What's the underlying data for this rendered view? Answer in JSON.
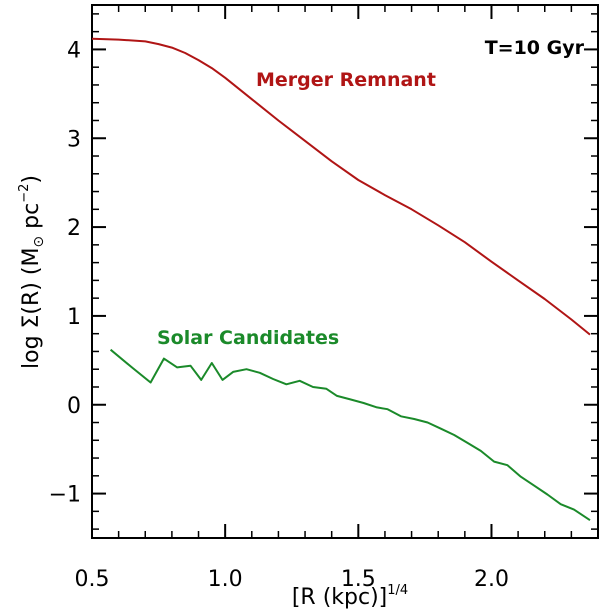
{
  "chart_data": {
    "type": "line",
    "annotation": "T=10 Gyr",
    "xlabel": "[R (kpc)]",
    "xlabel_superscript": "1/4",
    "ylabel": "log Σ(R)  (M",
    "ylabel_sun_symbol": "⊙",
    "ylabel_unit": " pc",
    "ylabel_superscript": "−2",
    "ylabel_close": ")",
    "xlim": [
      0.5,
      2.4
    ],
    "ylim": [
      -1.5,
      4.5
    ],
    "xticks": [
      0.5,
      1.0,
      1.5,
      2.0
    ],
    "xtick_labels": [
      "0.5",
      "1.0",
      "1.5",
      "2.0"
    ],
    "yticks": [
      -1,
      0,
      1,
      2,
      3,
      4
    ],
    "ytick_labels": [
      "−1",
      "0",
      "1",
      "2",
      "3",
      "4"
    ],
    "series": [
      {
        "name": "Merger Remnant",
        "color": "#b01515",
        "x": [
          0.5,
          0.6,
          0.7,
          0.75,
          0.8,
          0.85,
          0.9,
          0.95,
          1.0,
          1.1,
          1.2,
          1.3,
          1.4,
          1.5,
          1.6,
          1.7,
          1.8,
          1.9,
          2.0,
          2.1,
          2.2,
          2.3,
          2.37
        ],
        "y": [
          4.12,
          4.11,
          4.09,
          4.06,
          4.02,
          3.96,
          3.88,
          3.79,
          3.68,
          3.44,
          3.2,
          2.97,
          2.74,
          2.53,
          2.36,
          2.2,
          2.02,
          1.83,
          1.61,
          1.4,
          1.19,
          0.96,
          0.79
        ]
      },
      {
        "name": "Solar Candidates",
        "color": "#1b8a2a",
        "x": [
          0.57,
          0.65,
          0.72,
          0.77,
          0.82,
          0.87,
          0.91,
          0.95,
          0.99,
          1.03,
          1.08,
          1.13,
          1.18,
          1.23,
          1.28,
          1.33,
          1.38,
          1.42,
          1.47,
          1.52,
          1.57,
          1.61,
          1.66,
          1.71,
          1.76,
          1.81,
          1.86,
          1.91,
          1.96,
          2.01,
          2.06,
          2.11,
          2.16,
          2.21,
          2.26,
          2.31,
          2.37
        ],
        "y": [
          0.62,
          0.42,
          0.25,
          0.52,
          0.42,
          0.44,
          0.28,
          0.47,
          0.28,
          0.37,
          0.4,
          0.36,
          0.29,
          0.23,
          0.27,
          0.2,
          0.18,
          0.1,
          0.06,
          0.02,
          -0.03,
          -0.05,
          -0.13,
          -0.16,
          -0.2,
          -0.27,
          -0.34,
          -0.43,
          -0.52,
          -0.64,
          -0.68,
          -0.81,
          -0.91,
          -1.01,
          -1.12,
          -1.18,
          -1.3
        ]
      }
    ]
  }
}
